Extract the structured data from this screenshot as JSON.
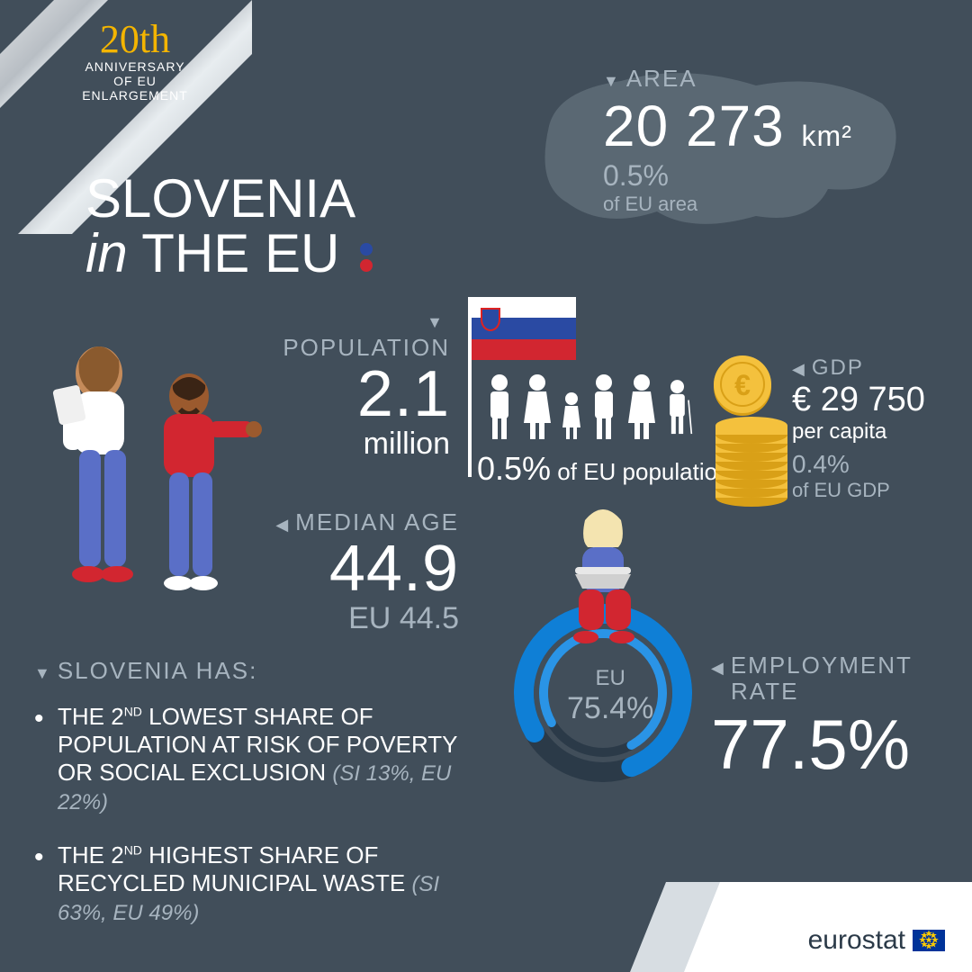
{
  "colors": {
    "bg": "#414e5a",
    "muted": "#a7b4bf",
    "gold": "#f4b500",
    "blue_accent": "#0f7fd6",
    "dark_ring": "#2b3a48",
    "flag_white": "#ffffff",
    "flag_blue": "#2a4aa3",
    "flag_red": "#d22630",
    "coin_gold": "#f4c13d",
    "coin_gold_dark": "#d9a017",
    "map_fill": "#5a6873"
  },
  "anniversary": {
    "top": "20th",
    "line1": "ANNIVERSARY",
    "line2": "OF EU ENLARGEMENT"
  },
  "title": {
    "line1": "SLOVENIA",
    "in": "in",
    "line2_rest": " THE EU"
  },
  "area": {
    "label": "AREA",
    "value": "20 273",
    "unit": "km²",
    "pct": "0.5%",
    "pct_sub": "of EU area"
  },
  "population": {
    "label": "POPULATION",
    "value": "2.1",
    "unit": "million",
    "pct": "0.5%",
    "pct_text": "of EU population"
  },
  "median": {
    "label": "MEDIAN AGE",
    "value": "44.9",
    "eu_label": "EU",
    "eu_value": "44.5"
  },
  "gdp": {
    "label": "GDP",
    "value": "€ 29 750",
    "per": "per capita",
    "pct": "0.4%",
    "pct_sub": "of EU GDP"
  },
  "employment": {
    "label_line1": "EMPLOYMENT",
    "label_line2": "RATE",
    "value": "77.5%",
    "value_num": 77.5,
    "eu_label": "EU",
    "eu_value": "75.4%",
    "eu_value_num": 75.4,
    "ring_colors": {
      "outer": "#0f7fd6",
      "inner": "#1a85d6",
      "track": "#2b3a48"
    },
    "ring_width_outer": 22,
    "ring_width_inner": 10
  },
  "facts": {
    "header": "SLOVENIA HAS:",
    "items": [
      {
        "pre": "THE 2",
        "ord": "ND",
        "rest": " LOWEST SHARE OF POPULATION AT RISK OF POVERTY OR SOCIAL EXCLUSION ",
        "paren": "(SI 13%, EU 22%)"
      },
      {
        "pre": "THE 2",
        "ord": "ND",
        "rest": " HIGHEST SHARE OF RECYCLED MUNICIPAL WASTE ",
        "paren": "(SI 63%, EU 49%)"
      }
    ]
  },
  "footer": {
    "brand": "eurostat"
  }
}
